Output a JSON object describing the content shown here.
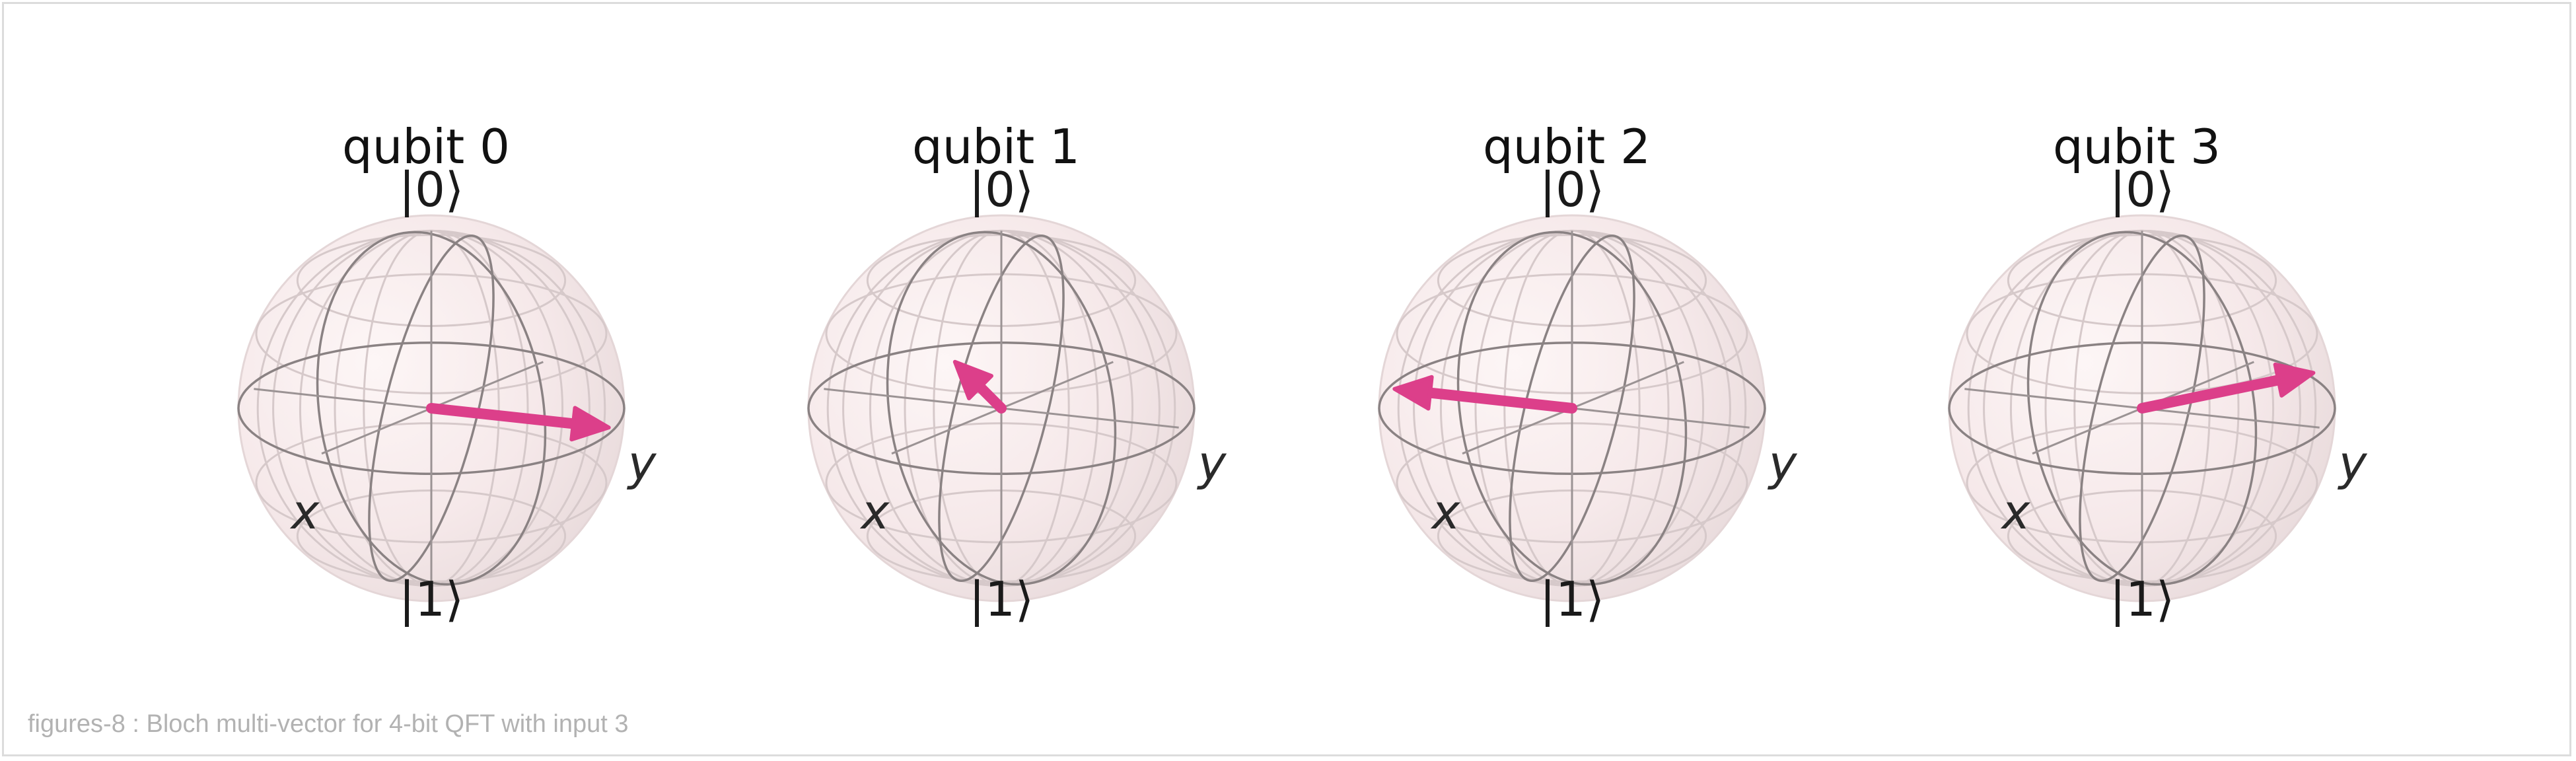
{
  "qubits": [
    {
      "title": "qubit 0",
      "top_label": "|0⟩",
      "bottom_label": "|1⟩",
      "x_label": "x",
      "y_label": "y"
    },
    {
      "title": "qubit 1",
      "top_label": "|0⟩",
      "bottom_label": "|1⟩",
      "x_label": "x",
      "y_label": "y"
    },
    {
      "title": "qubit 2",
      "top_label": "|0⟩",
      "bottom_label": "|1⟩",
      "x_label": "x",
      "y_label": "y"
    },
    {
      "title": "qubit 3",
      "top_label": "|0⟩",
      "bottom_label": "|1⟩",
      "x_label": "x",
      "y_label": "y"
    }
  ],
  "vectors": [
    {
      "x": 0.0,
      "y": 1.0
    },
    {
      "x": -0.707,
      "y": -0.707
    },
    {
      "x": 0.0,
      "y": -1.0
    },
    {
      "x": -0.924,
      "y": 0.383
    }
  ],
  "colors": {
    "vector": "#dc3f8a",
    "sphere": "#f6e9ea",
    "wire": "#8a8283"
  },
  "caption": "figures-8 : Bloch multi-vector for 4-bit QFT with input 3"
}
